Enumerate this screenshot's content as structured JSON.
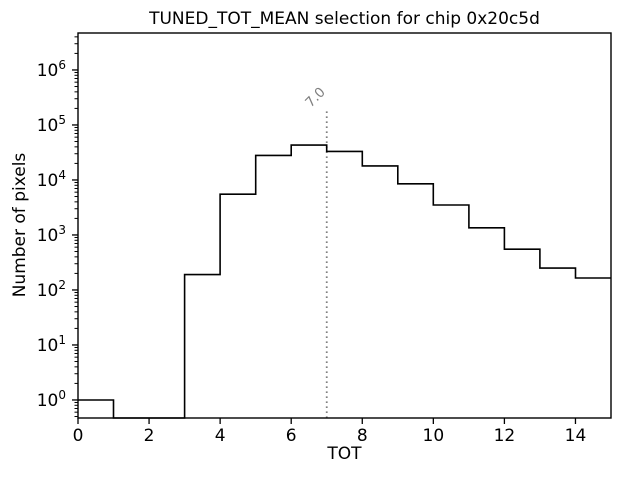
{
  "chart_data": {
    "type": "bar",
    "subtype": "step-histogram",
    "title": "TUNED_TOT_MEAN selection for chip 0x20c5d",
    "xlabel": "TOT",
    "ylabel": "Number of pixels",
    "yscale": "log",
    "grid": false,
    "legend": null,
    "xlim": [
      0,
      15
    ],
    "ylim": [
      0.47,
      4700000
    ],
    "x_ticks": [
      0,
      2,
      4,
      6,
      8,
      10,
      12,
      14
    ],
    "y_tick_exponents": [
      0,
      1,
      2,
      3,
      4,
      5,
      6
    ],
    "bin_edges": [
      0,
      1,
      2,
      3,
      4,
      5,
      6,
      7,
      8,
      9,
      10,
      11,
      12,
      13,
      14,
      15
    ],
    "counts": [
      1,
      0,
      0,
      190,
      5500,
      28000,
      43000,
      33000,
      18000,
      8500,
      3500,
      1350,
      550,
      250,
      165
    ],
    "line_color": "#000000",
    "axis_color": "#000000",
    "vline": {
      "x": 7.0,
      "label": "7.0",
      "style": "dotted",
      "color": "#7f7f7f",
      "ymax_fraction": 0.8
    }
  }
}
